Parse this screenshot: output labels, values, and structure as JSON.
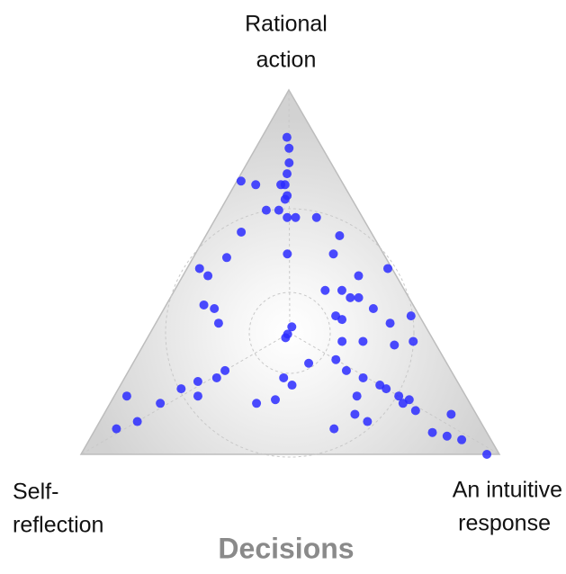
{
  "chart_data": {
    "type": "ternary",
    "title": "Decisions",
    "corners": {
      "top": [
        "Rational",
        "action"
      ],
      "left": [
        "Self-",
        "reflection"
      ],
      "right": [
        "An intuitive",
        "response"
      ]
    },
    "color": "#2b2bff",
    "grid": true,
    "points": [
      [
        87,
        7,
        6
      ],
      [
        84,
        8,
        8
      ],
      [
        80,
        10,
        10
      ],
      [
        77,
        12,
        11
      ],
      [
        74,
        14,
        12
      ],
      [
        74,
        15,
        11
      ],
      [
        71,
        15,
        14
      ],
      [
        70,
        16,
        14
      ],
      [
        65,
        16,
        19
      ],
      [
        65,
        18,
        17
      ],
      [
        67,
        19,
        14
      ],
      [
        67,
        22,
        11
      ],
      [
        55,
        23,
        22
      ],
      [
        75,
        24,
        1
      ],
      [
        74,
        21,
        5
      ],
      [
        65,
        11,
        24
      ],
      [
        60,
        8,
        32
      ],
      [
        55,
        12,
        33
      ],
      [
        61,
        31,
        8
      ],
      [
        54,
        38,
        8
      ],
      [
        51,
        46,
        3
      ],
      [
        49,
        45,
        6
      ],
      [
        51,
        1,
        48
      ],
      [
        49,
        9,
        42
      ],
      [
        45,
        15,
        40
      ],
      [
        45,
        19,
        36
      ],
      [
        43,
        12,
        45
      ],
      [
        43,
        14,
        43
      ],
      [
        40,
        10,
        50
      ],
      [
        38,
        20,
        42
      ],
      [
        37,
        19,
        44
      ],
      [
        41,
        50,
        9
      ],
      [
        40,
        48,
        12
      ],
      [
        36,
        49,
        15
      ],
      [
        35,
        32,
        33
      ],
      [
        33,
        34,
        33
      ],
      [
        32,
        35,
        33
      ],
      [
        38,
        2,
        60
      ],
      [
        36,
        8,
        56
      ],
      [
        31,
        5,
        64
      ],
      [
        30,
        10,
        60
      ],
      [
        31,
        22,
        47
      ],
      [
        31,
        17,
        52
      ],
      [
        25,
        33,
        42
      ],
      [
        26,
        26,
        48
      ],
      [
        23,
        25,
        52
      ],
      [
        23,
        54,
        23
      ],
      [
        21,
        57,
        22
      ],
      [
        20,
        62,
        18
      ],
      [
        16,
        64,
        20
      ],
      [
        18,
        67,
        15
      ],
      [
        21,
        41,
        38
      ],
      [
        19,
        40,
        41
      ],
      [
        15,
        46,
        39
      ],
      [
        14,
        51,
        35
      ],
      [
        21,
        22,
        57
      ],
      [
        19,
        19,
        62
      ],
      [
        18,
        18,
        64
      ],
      [
        16,
        16,
        68
      ],
      [
        14,
        16,
        70
      ],
      [
        12,
        14,
        74
      ],
      [
        16,
        26,
        58
      ],
      [
        11,
        29,
        60
      ],
      [
        7,
        36,
        57
      ],
      [
        9,
        27,
        64
      ],
      [
        6,
        13,
        81
      ],
      [
        5,
        10,
        85
      ],
      [
        11,
        6,
        83
      ],
      [
        4,
        7,
        89
      ],
      [
        0,
        3,
        97
      ],
      [
        16,
        81,
        3
      ],
      [
        14,
        74,
        12
      ],
      [
        9,
        82,
        9
      ],
      [
        7,
        88,
        5
      ],
      [
        15,
        14,
        71
      ]
    ]
  }
}
